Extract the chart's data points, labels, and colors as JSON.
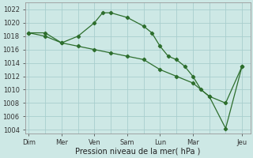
{
  "background_color": "#cde8e5",
  "grid_color": "#a8cece",
  "line_color": "#2d6e2d",
  "xlabel": "Pression niveau de la mer( hPa )",
  "ylim": [
    1003.5,
    1023.0
  ],
  "yticks": [
    1004,
    1006,
    1008,
    1010,
    1012,
    1014,
    1016,
    1018,
    1020,
    1022
  ],
  "xtick_labels": [
    "Dim",
    "Mer",
    "Ven",
    "Sam",
    "Lun",
    "Mar",
    "Jeu"
  ],
  "xtick_positions": [
    0,
    2,
    4,
    6,
    8,
    10,
    13
  ],
  "minor_xtick_positions": [
    0,
    1,
    2,
    3,
    4,
    5,
    6,
    7,
    8,
    9,
    10,
    11,
    12,
    13
  ],
  "line1_x": [
    0,
    1,
    2,
    3,
    4,
    4.5,
    5,
    6,
    7,
    7.5,
    8,
    8.5,
    9,
    9.5,
    10,
    10.5,
    11,
    12,
    13
  ],
  "line1_y": [
    1018.5,
    1018.5,
    1017.0,
    1018.0,
    1020.0,
    1021.5,
    1021.5,
    1020.8,
    1019.5,
    1018.5,
    1016.5,
    1015.0,
    1014.5,
    1013.5,
    1012.0,
    1010.0,
    1009.0,
    1004.2,
    1013.5
  ],
  "line2_x": [
    0,
    1,
    2,
    3,
    4,
    5,
    6,
    7,
    8,
    9,
    10,
    11,
    12,
    13
  ],
  "line2_y": [
    1018.5,
    1018.0,
    1017.0,
    1016.5,
    1016.0,
    1015.5,
    1015.0,
    1014.5,
    1013.0,
    1012.0,
    1011.0,
    1009.0,
    1008.0,
    1013.5
  ]
}
